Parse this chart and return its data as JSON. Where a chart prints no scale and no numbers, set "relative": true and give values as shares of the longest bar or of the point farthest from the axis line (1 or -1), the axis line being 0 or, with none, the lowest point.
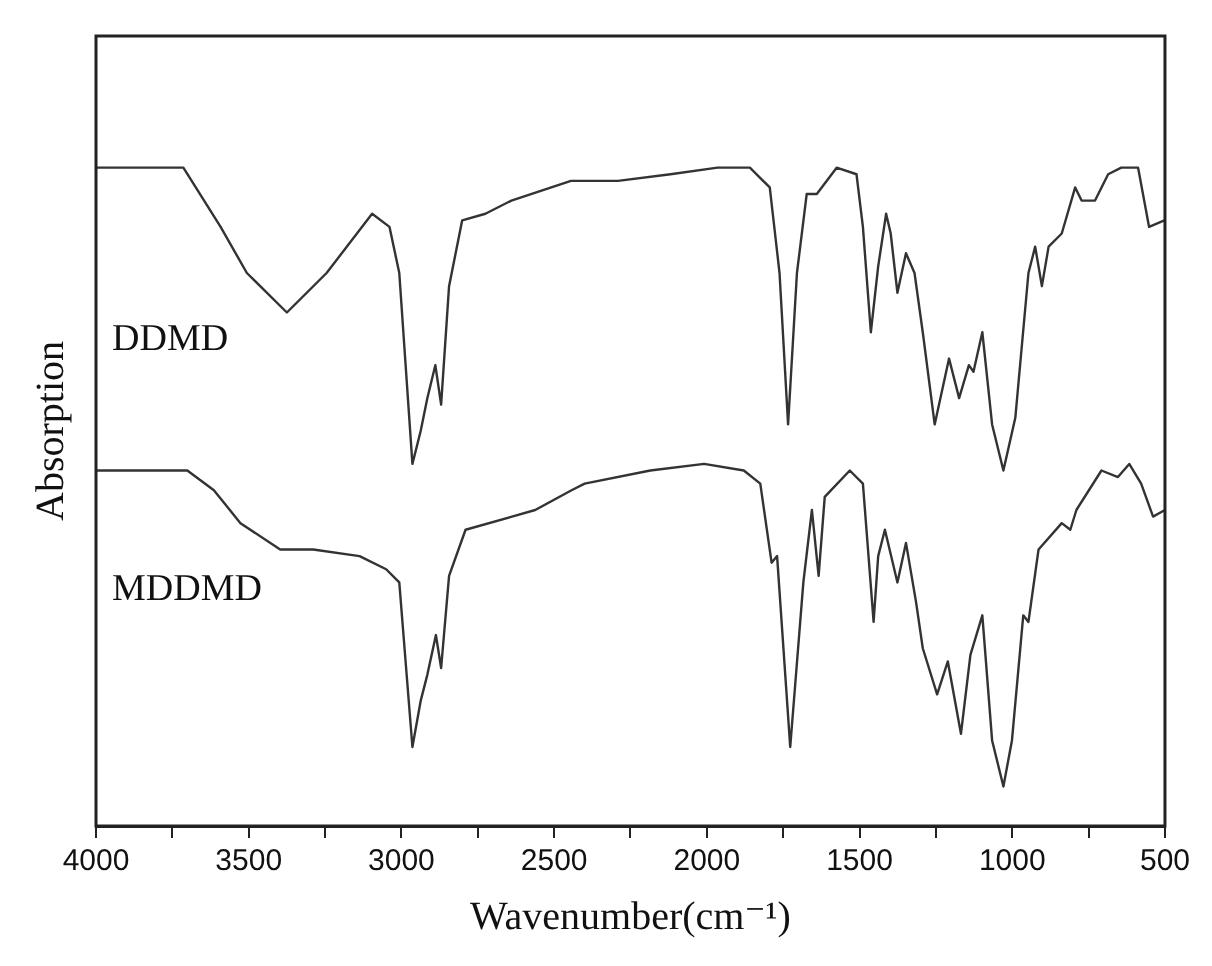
{
  "chart_data": {
    "type": "line",
    "relative": true,
    "xlabel": "Wavenumber(cm⁻¹)",
    "ylabel": "Absorption",
    "xlim": [
      4000,
      500
    ],
    "xticks": [
      4000,
      {
        "value": 3750,
        "label": null
      },
      3500,
      {
        "value": 3250,
        "label": null
      },
      3000,
      {
        "value": 2750,
        "label": null
      },
      2500,
      {
        "value": 2250,
        "label": null
      },
      2000,
      {
        "value": 1750,
        "label": null
      },
      1500,
      {
        "value": 1250,
        "label": null
      },
      1000,
      {
        "value": 750,
        "label": null
      },
      500
    ],
    "marker": "none",
    "line_style": "solid",
    "series": [
      {
        "name": "DDMD",
        "color": "#333333",
        "x": [
          4000,
          3714,
          3592,
          3506,
          3375,
          3245,
          3096,
          3039,
          3007,
          2964,
          2937,
          2915,
          2889,
          2870,
          2844,
          2801,
          2725,
          2640,
          2445,
          2291,
          2119,
          1965,
          1859,
          1794,
          1762,
          1734,
          1705,
          1673,
          1640,
          1575,
          1510,
          1489,
          1463,
          1439,
          1413,
          1398,
          1376,
          1348,
          1320,
          1293,
          1254,
          1207,
          1174,
          1142,
          1127,
          1098,
          1066,
          1029,
          990,
          947,
          925,
          903,
          881,
          838,
          794,
          773,
          729,
          686,
          643,
          588,
          552,
          502
        ],
        "values": [
          1.0,
          1.0,
          0.91,
          0.84,
          0.78,
          0.84,
          0.93,
          0.91,
          0.84,
          0.55,
          0.6,
          0.65,
          0.7,
          0.64,
          0.82,
          0.92,
          0.93,
          0.95,
          0.98,
          0.98,
          0.99,
          1.0,
          1.0,
          0.97,
          0.84,
          0.61,
          0.84,
          0.96,
          0.96,
          1.0,
          0.99,
          0.91,
          0.75,
          0.85,
          0.93,
          0.9,
          0.81,
          0.87,
          0.84,
          0.75,
          0.61,
          0.71,
          0.65,
          0.7,
          0.69,
          0.75,
          0.61,
          0.54,
          0.62,
          0.84,
          0.88,
          0.82,
          0.88,
          0.9,
          0.97,
          0.95,
          0.95,
          0.99,
          1.0,
          1.0,
          0.91,
          0.92
        ]
      },
      {
        "name": "MDDMD",
        "color": "#333333",
        "x": [
          4000,
          3701,
          3614,
          3527,
          3397,
          3289,
          3137,
          3050,
          3007,
          2964,
          2937,
          2915,
          2887,
          2870,
          2844,
          2790,
          2638,
          2562,
          2443,
          2400,
          2185,
          2009,
          1879,
          1825,
          1788,
          1770,
          1727,
          1684,
          1656,
          1634,
          1614,
          1532,
          1489,
          1454,
          1439,
          1417,
          1376,
          1348,
          1315,
          1293,
          1246,
          1211,
          1168,
          1137,
          1098,
          1066,
          1029,
          1001,
          964,
          947,
          914,
          838,
          810,
          790,
          708,
          654,
          617,
          578,
          539,
          500
        ],
        "values": [
          0.54,
          0.54,
          0.51,
          0.46,
          0.42,
          0.42,
          0.41,
          0.39,
          0.37,
          0.12,
          0.19,
          0.23,
          0.29,
          0.24,
          0.38,
          0.45,
          0.47,
          0.48,
          0.51,
          0.52,
          0.54,
          0.55,
          0.54,
          0.52,
          0.4,
          0.41,
          0.12,
          0.37,
          0.48,
          0.38,
          0.5,
          0.54,
          0.52,
          0.31,
          0.41,
          0.45,
          0.37,
          0.43,
          0.34,
          0.27,
          0.2,
          0.25,
          0.14,
          0.26,
          0.32,
          0.13,
          0.06,
          0.13,
          0.32,
          0.31,
          0.42,
          0.46,
          0.45,
          0.48,
          0.54,
          0.53,
          0.55,
          0.52,
          0.47,
          0.48
        ]
      }
    ]
  }
}
